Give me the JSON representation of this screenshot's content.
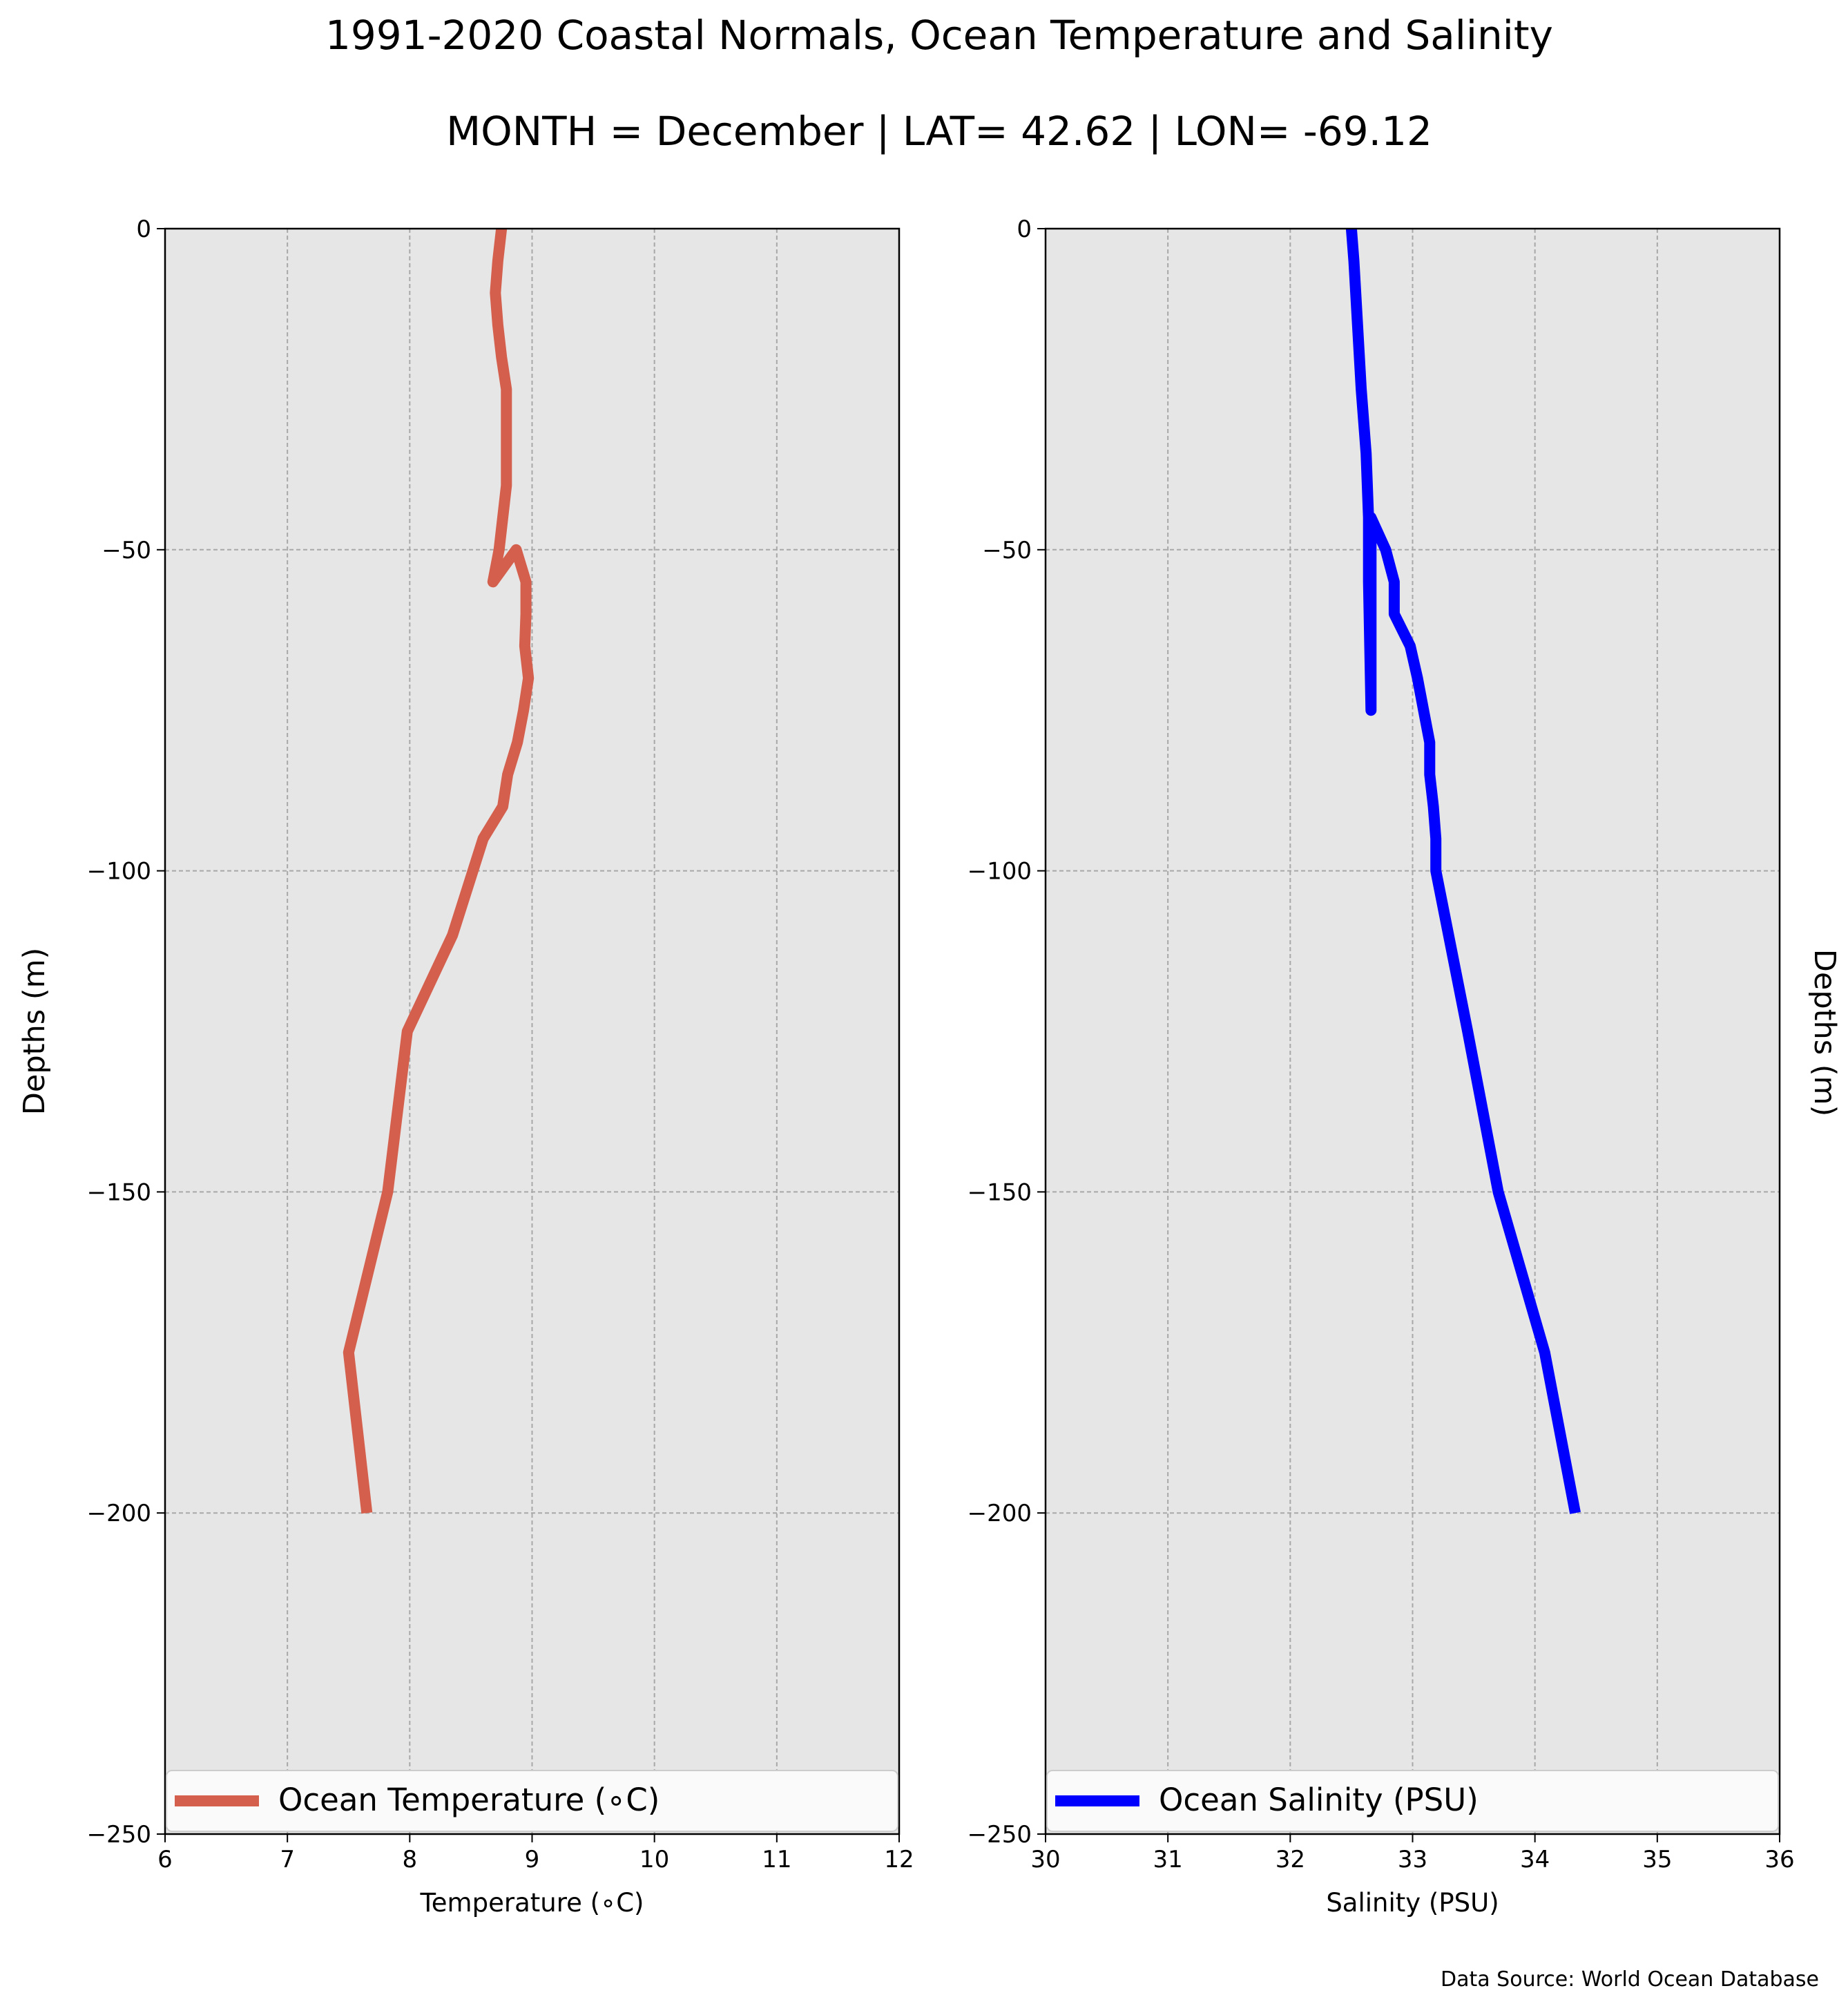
{
  "figure": {
    "title_line1": "1991-2020 Coastal Normals, Ocean Temperature and Salinity",
    "title_line2": "MONTH = December | LAT= 42.62 | LON= -69.12",
    "source_note": "Data Source: World Ocean Database",
    "right_ylabel": "Depths (m)",
    "panel_background": "#e6e6e6"
  },
  "chart_data": [
    {
      "type": "line",
      "orientation": "profile",
      "xlabel": "Temperature (∘C)",
      "ylabel": "Depths (m)",
      "xlim": [
        6,
        12
      ],
      "ylim": [
        -250,
        0
      ],
      "xticks": [
        "6",
        "7",
        "8",
        "9",
        "10",
        "11",
        "12"
      ],
      "yticks": [
        "0",
        "−50",
        "−100",
        "−150",
        "−200",
        "−250"
      ],
      "grid": true,
      "legend_position": "lower center",
      "series": [
        {
          "name": "Ocean Temperature (∘C)",
          "color": "#d45f4d",
          "x": [
            8.75,
            8.72,
            8.7,
            8.72,
            8.75,
            8.79,
            8.79,
            8.79,
            8.79,
            8.76,
            8.73,
            8.68,
            8.87,
            8.95,
            8.95,
            8.94,
            8.97,
            8.93,
            8.88,
            8.8,
            8.76,
            8.6,
            8.35,
            7.98,
            7.82,
            7.5,
            7.65
          ],
          "y": [
            0,
            -5,
            -10,
            -15,
            -20,
            -25,
            -30,
            -35,
            -40,
            -45,
            -50,
            -55,
            -50,
            -55,
            -60,
            -65,
            -70,
            -75,
            -80,
            -85,
            -90,
            -95,
            -110,
            -125,
            -150,
            -175,
            -200
          ]
        }
      ]
    },
    {
      "type": "line",
      "orientation": "profile",
      "xlabel": "Salinity (PSU)",
      "ylabel": "",
      "xlim": [
        30,
        36
      ],
      "ylim": [
        -250,
        0
      ],
      "xticks": [
        "30",
        "31",
        "32",
        "33",
        "34",
        "35",
        "36"
      ],
      "yticks": [
        "0",
        "−50",
        "−100",
        "−150",
        "−200",
        "−250"
      ],
      "grid": true,
      "legend_position": "lower center",
      "series": [
        {
          "name": "Ocean Salinity (PSU)",
          "color": "#0000ff",
          "x": [
            32.5,
            32.52,
            32.55,
            32.58,
            32.62,
            32.64,
            32.64,
            32.65,
            32.66,
            32.66,
            32.78,
            32.85,
            32.85,
            32.98,
            33.04,
            33.09,
            33.14,
            33.14,
            33.17,
            33.19,
            33.19,
            33.45,
            33.7,
            34.08,
            34.33
          ],
          "y": [
            0,
            -5,
            -15,
            -25,
            -35,
            -45,
            -55,
            -65,
            -75,
            -45,
            -50,
            -55,
            -60,
            -65,
            -70,
            -75,
            -80,
            -85,
            -90,
            -95,
            -100,
            -125,
            -150,
            -175,
            -200
          ]
        }
      ]
    }
  ]
}
